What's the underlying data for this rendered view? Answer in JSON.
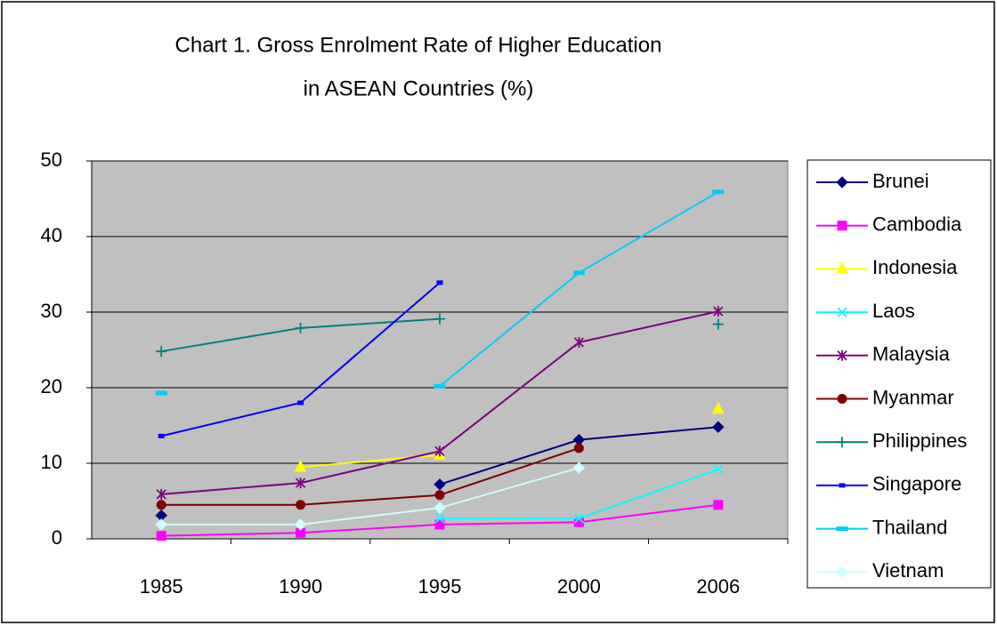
{
  "chart_data": {
    "type": "line",
    "title": [
      "Chart 1. Gross Enrolment Rate of Higher Education",
      "in ASEAN Countries (%)"
    ],
    "categories": [
      "1985",
      "1990",
      "1995",
      "2000",
      "2006"
    ],
    "ylim": [
      0,
      50
    ],
    "yticks": [
      0,
      10,
      20,
      30,
      40,
      50
    ],
    "grid": true,
    "legend": "right",
    "plot_background": "#c0c0c0",
    "series": [
      {
        "name": "Brunei",
        "color": "#000080",
        "marker": "diamond",
        "values": [
          3.1,
          null,
          7.2,
          13.1,
          14.8
        ]
      },
      {
        "name": "Cambodia",
        "color": "#ff00ff",
        "marker": "square",
        "values": [
          0.4,
          0.8,
          1.9,
          2.2,
          4.5
        ]
      },
      {
        "name": "Indonesia",
        "color": "#ffff00",
        "marker": "triangle",
        "values": [
          null,
          9.5,
          11.1,
          null,
          17.2
        ]
      },
      {
        "name": "Laos",
        "color": "#00ffff",
        "marker": "x",
        "values": [
          null,
          null,
          2.7,
          2.7,
          9.2
        ]
      },
      {
        "name": "Malaysia",
        "color": "#800080",
        "marker": "star",
        "values": [
          5.9,
          7.4,
          11.6,
          26.0,
          30.1
        ]
      },
      {
        "name": "Myanmar",
        "color": "#800000",
        "marker": "circle",
        "values": [
          4.5,
          4.5,
          5.8,
          12.0,
          null
        ]
      },
      {
        "name": "Philippines",
        "color": "#008080",
        "marker": "plus",
        "values": [
          24.8,
          27.9,
          29.1,
          null,
          28.4
        ]
      },
      {
        "name": "Singapore",
        "color": "#0000ff",
        "marker": "dash",
        "values": [
          13.6,
          18.0,
          33.9,
          null,
          null
        ]
      },
      {
        "name": "Thailand",
        "color": "#00ccff",
        "marker": "wdash",
        "values": [
          19.3,
          null,
          20.2,
          35.2,
          45.9
        ]
      },
      {
        "name": "Vietnam",
        "color": "#ccffff",
        "marker": "diamond",
        "values": [
          1.9,
          1.9,
          4.1,
          9.4,
          null
        ]
      }
    ]
  }
}
